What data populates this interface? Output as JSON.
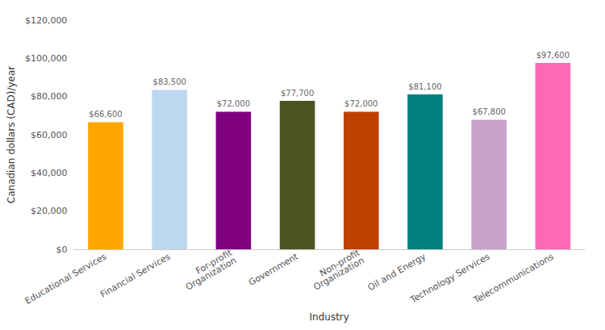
{
  "chart_data": {
    "type": "bar",
    "categories": [
      "Educational Services",
      "Financial Services",
      "For-profit\nOrganization",
      "Government",
      "Non-profit\nOrganization",
      "Oil and Energy",
      "Technology Services",
      "Telecommunications"
    ],
    "values": [
      66600,
      83500,
      72000,
      77700,
      72000,
      81100,
      67800,
      97600
    ],
    "value_labels": [
      "$66,600",
      "$83,500",
      "$72,000",
      "$77,700",
      "$72,000",
      "$81,100",
      "$67,800",
      "$97,600"
    ],
    "colors": [
      "#FFA500",
      "#BDD7EE",
      "#800080",
      "#4B5320",
      "#C04000",
      "#008080",
      "#C8A2C8",
      "#FF69B4"
    ],
    "xlabel": "Industry",
    "ylabel": "Canadian dollars (CAD)/year",
    "ylim": [
      0,
      120000
    ],
    "yticks": [
      {
        "value": 0,
        "label": "$0"
      },
      {
        "value": 20000,
        "label": "$20,000"
      },
      {
        "value": 40000,
        "label": "$40,000"
      },
      {
        "value": 60000,
        "label": "$60,000"
      },
      {
        "value": 80000,
        "label": "$80,000"
      },
      {
        "value": 100000,
        "label": "$100,000"
      },
      {
        "value": 120000,
        "label": "$120,000"
      }
    ],
    "grid": false,
    "data_labels": true
  }
}
